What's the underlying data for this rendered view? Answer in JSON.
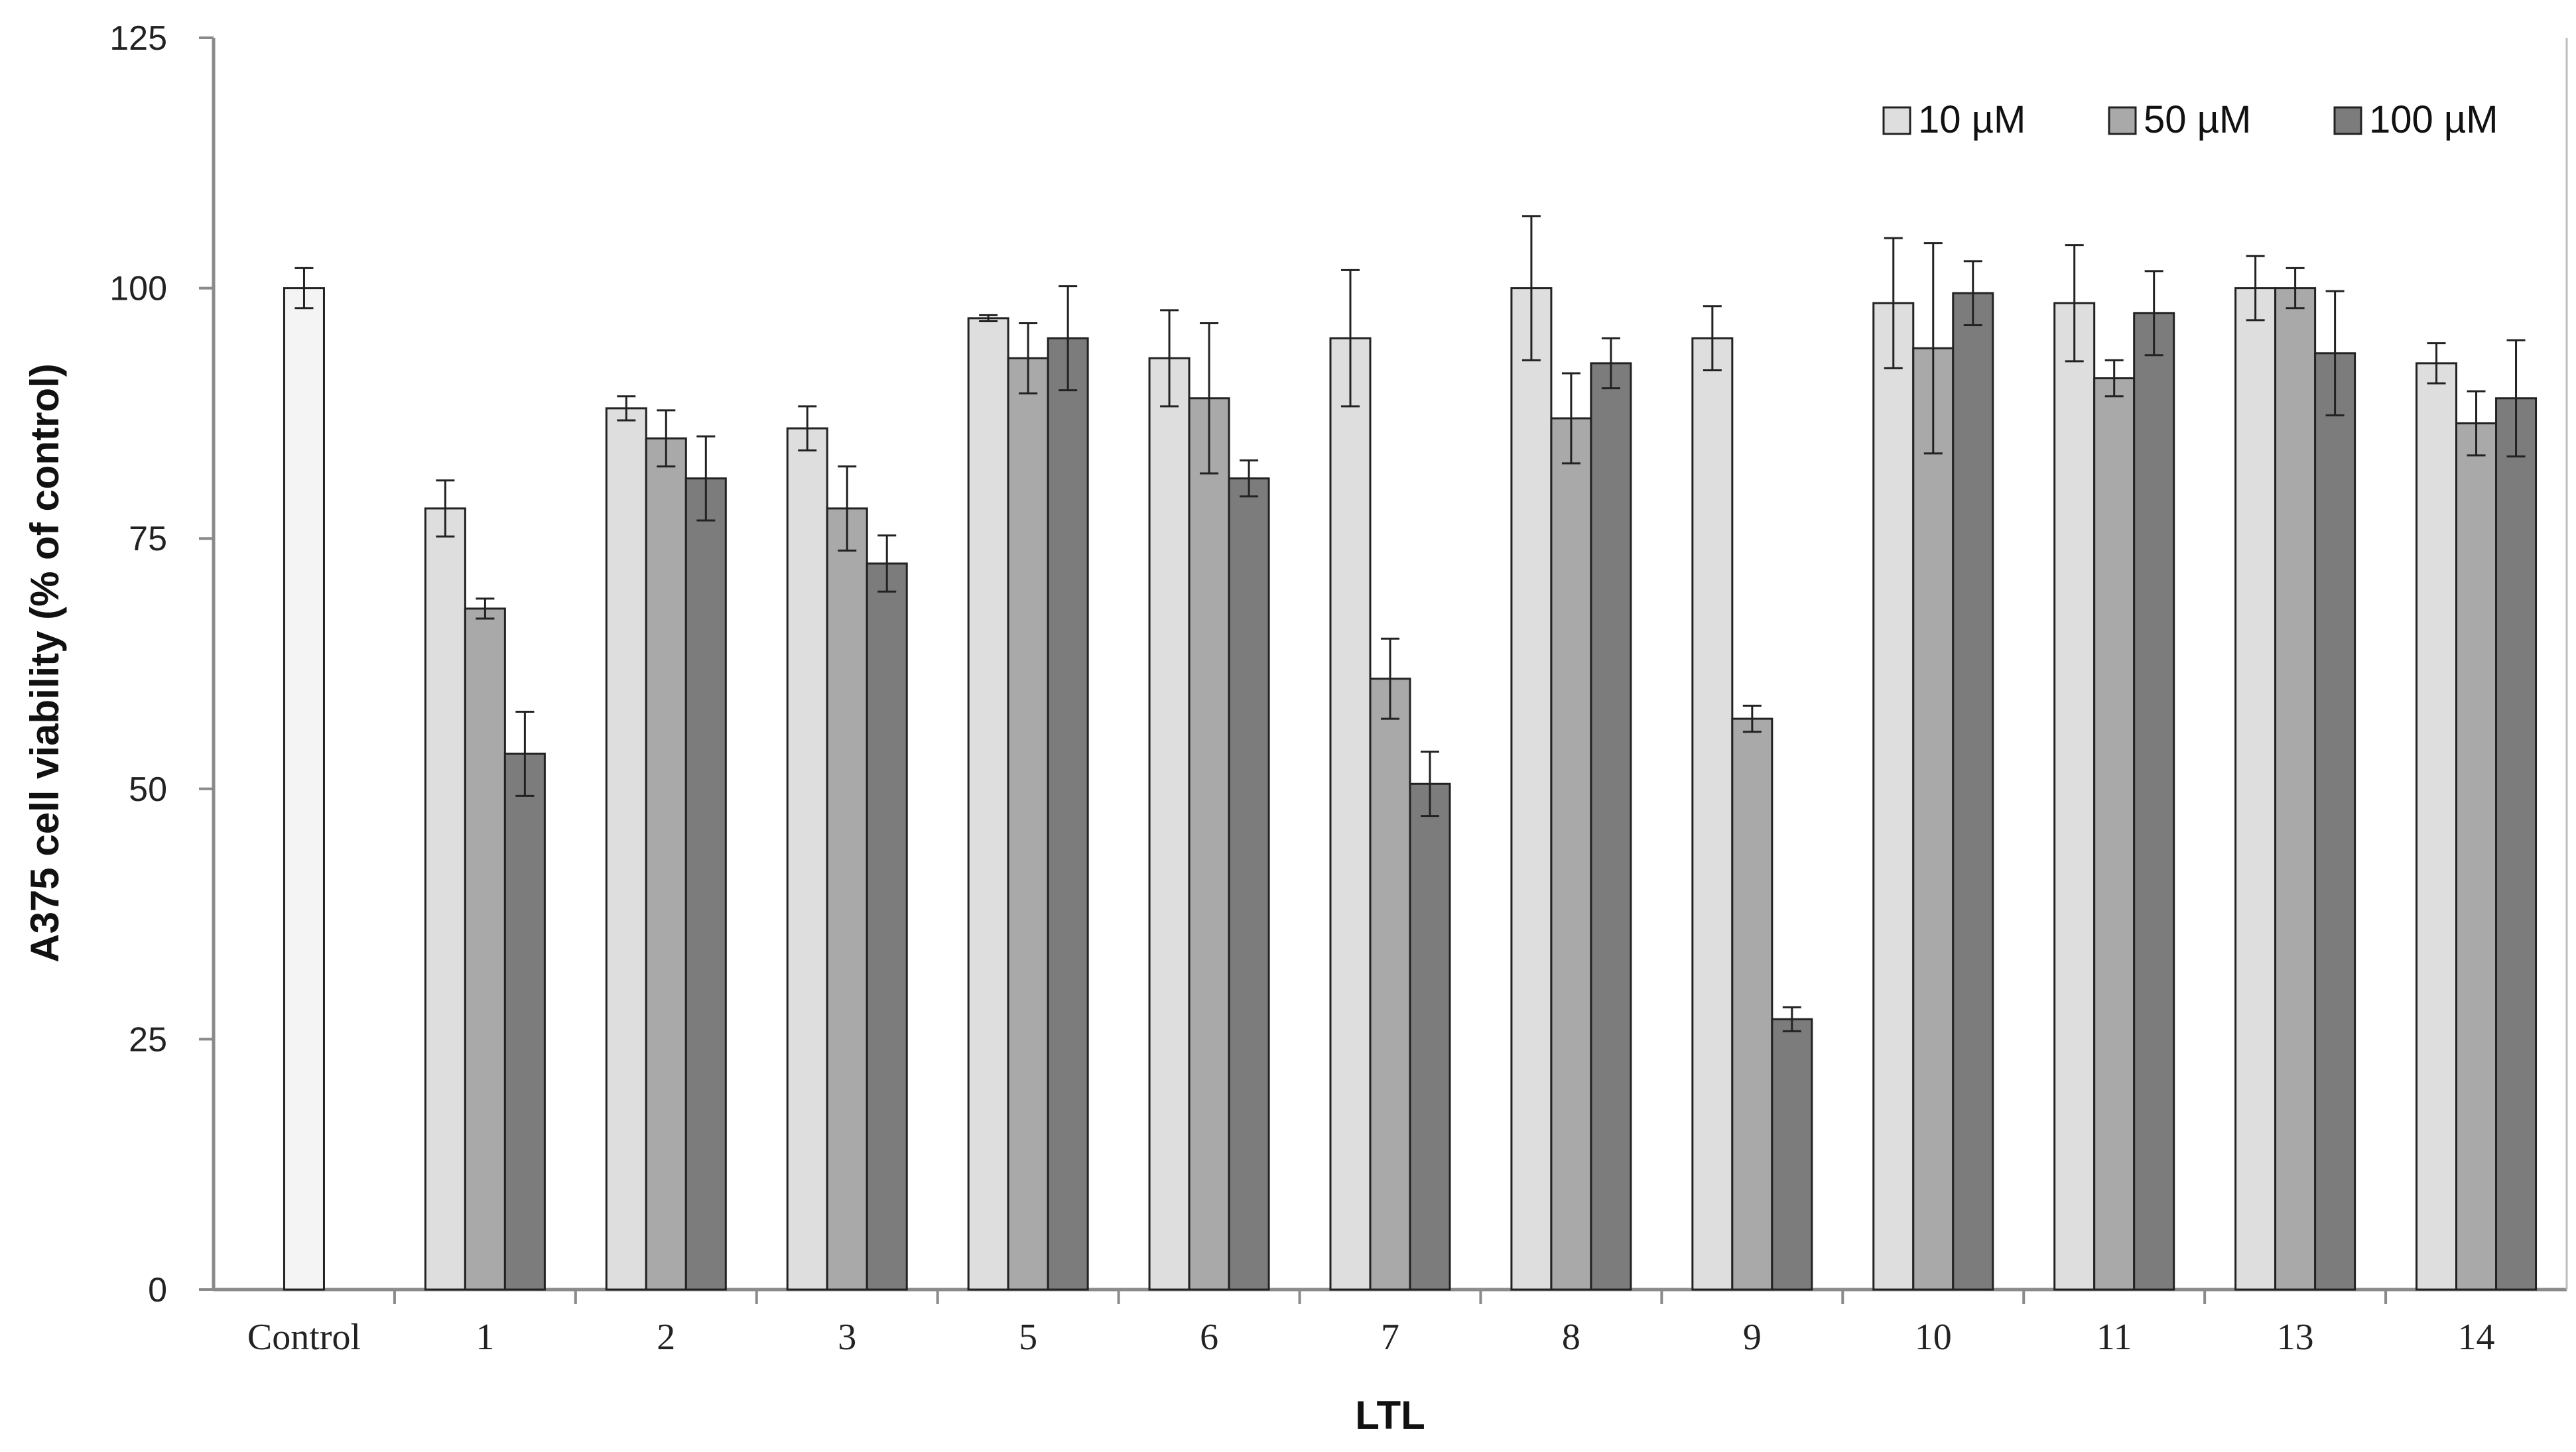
{
  "chart_data": {
    "type": "bar",
    "xlabel": "LTL",
    "ylabel": "A375 cell viability (% of control)",
    "ylim": [
      0,
      125
    ],
    "yticks": [
      0,
      25,
      50,
      75,
      100,
      125
    ],
    "grid": false,
    "legend_position": "top-right",
    "categories": [
      "Control",
      "1",
      "2",
      "3",
      "5",
      "6",
      "7",
      "8",
      "9",
      "10",
      "11",
      "13",
      "14"
    ],
    "control": {
      "category": "Control",
      "value": 100,
      "error": 2,
      "color": "#f4f4f4"
    },
    "series": [
      {
        "name": "10 µM",
        "color": "#dedede",
        "values": [
          null,
          78,
          88,
          86,
          97,
          93,
          95,
          100,
          95,
          98.5,
          98.5,
          100,
          92.5
        ],
        "errors": [
          null,
          2.8,
          1.2,
          2.2,
          0.3,
          4.8,
          6.8,
          7.2,
          3.2,
          6.5,
          5.8,
          3.2,
          2
        ]
      },
      {
        "name": "50 µM",
        "color": "#a9a9a9",
        "values": [
          null,
          68,
          85,
          78,
          93,
          89,
          61,
          87,
          57,
          94,
          91,
          100,
          86.5
        ],
        "errors": [
          null,
          1,
          2.8,
          4.2,
          3.5,
          7.5,
          4,
          4.5,
          1.3,
          10.5,
          1.8,
          2,
          3.2
        ]
      },
      {
        "name": "100 µM",
        "color": "#7c7c7c",
        "values": [
          null,
          53.5,
          81,
          72.5,
          95,
          81,
          50.5,
          92.5,
          27,
          99.5,
          97.5,
          93.5,
          89
        ],
        "errors": [
          null,
          4.2,
          4.2,
          2.8,
          5.2,
          1.8,
          3.2,
          2.5,
          1.2,
          3.2,
          4.2,
          6.2,
          5.8
        ]
      }
    ]
  }
}
